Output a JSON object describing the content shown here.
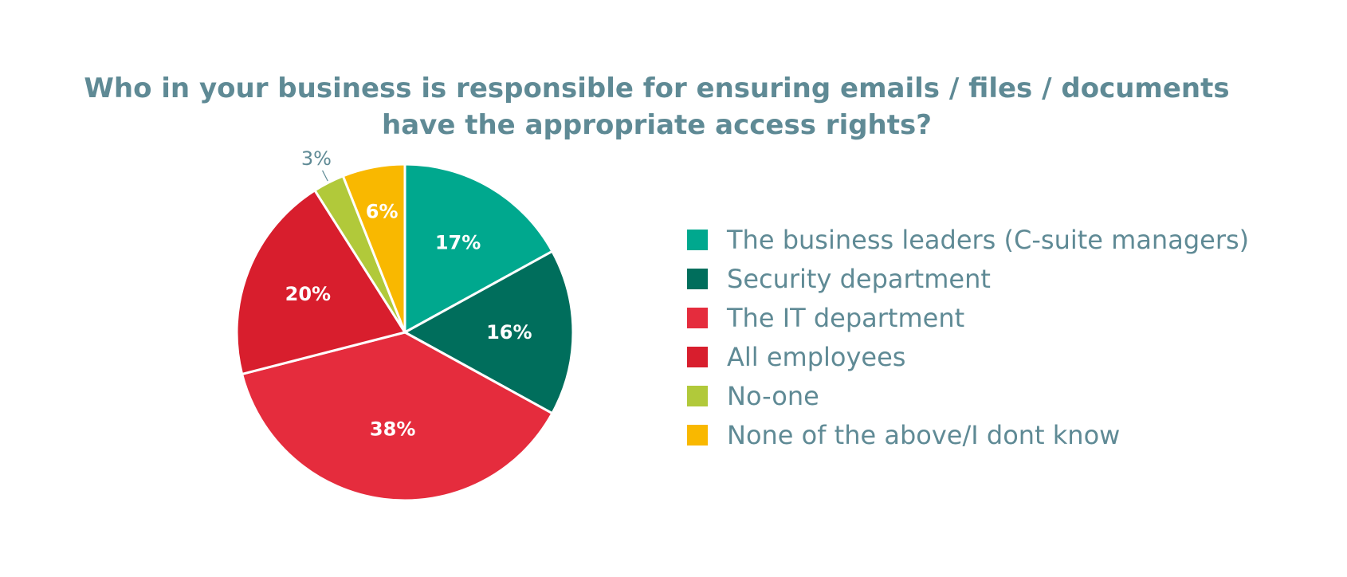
{
  "chart_data": {
    "type": "pie",
    "title": "Who in your business is responsible for ensuring emails / files / documents have the appropriate access rights?",
    "title_lines": [
      "Who in your business is responsible for ensuring emails / files / documents",
      "have the appropriate access rights?"
    ],
    "legend_position": "right",
    "slices": [
      {
        "label": "The business leaders (C-suite managers)",
        "value": 17,
        "display": "17%",
        "color": "#00a88e"
      },
      {
        "label": "Security department",
        "value": 16,
        "display": "16%",
        "color": "#006e5c"
      },
      {
        "label": "The IT department",
        "value": 38,
        "display": "38%",
        "color": "#e52c3d"
      },
      {
        "label": "All employees",
        "value": 20,
        "display": "20%",
        "color": "#d81e2d"
      },
      {
        "label": "No-one",
        "value": 3,
        "display": "3%",
        "color": "#b1c93a"
      },
      {
        "label": "None of the above/I dont know",
        "value": 6,
        "display": "6%",
        "color": "#f9b800"
      }
    ]
  }
}
